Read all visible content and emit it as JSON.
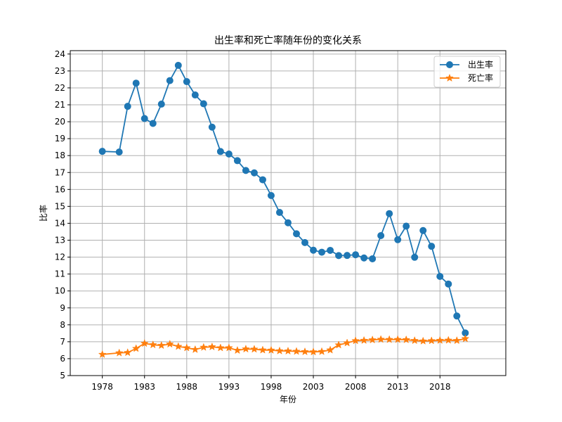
{
  "chart_data": {
    "type": "line",
    "title": "出生率和死亡率随年份的变化关系",
    "xlabel": "年份",
    "ylabel": "比率",
    "xlim": [
      1974.2,
      2025.8
    ],
    "ylim": [
      5,
      24.2
    ],
    "x_ticks": [
      1978,
      1983,
      1988,
      1993,
      1998,
      2003,
      2008,
      2013,
      2018
    ],
    "y_ticks": [
      5,
      6,
      7,
      8,
      9,
      10,
      11,
      12,
      13,
      14,
      15,
      16,
      17,
      18,
      19,
      20,
      21,
      22,
      23,
      24
    ],
    "grid": true,
    "legend_position": "top-right",
    "series": [
      {
        "name": "出生率",
        "color": "#1f77b4",
        "marker": "circle",
        "points": [
          [
            1978,
            18.25
          ],
          [
            1980,
            18.21
          ],
          [
            1981,
            20.91
          ],
          [
            1982,
            22.28
          ],
          [
            1983,
            20.19
          ],
          [
            1984,
            19.9
          ],
          [
            1985,
            21.04
          ],
          [
            1986,
            22.43
          ],
          [
            1987,
            23.33
          ],
          [
            1988,
            22.37
          ],
          [
            1989,
            21.58
          ],
          [
            1990,
            21.06
          ],
          [
            1991,
            19.68
          ],
          [
            1992,
            18.24
          ],
          [
            1993,
            18.09
          ],
          [
            1994,
            17.7
          ],
          [
            1995,
            17.12
          ],
          [
            1996,
            16.98
          ],
          [
            1997,
            16.57
          ],
          [
            1998,
            15.64
          ],
          [
            1999,
            14.64
          ],
          [
            2000,
            14.03
          ],
          [
            2001,
            13.38
          ],
          [
            2002,
            12.86
          ],
          [
            2003,
            12.41
          ],
          [
            2004,
            12.29
          ],
          [
            2005,
            12.4
          ],
          [
            2006,
            12.09
          ],
          [
            2007,
            12.1
          ],
          [
            2008,
            12.14
          ],
          [
            2009,
            11.95
          ],
          [
            2010,
            11.9
          ],
          [
            2011,
            13.27
          ],
          [
            2012,
            14.57
          ],
          [
            2013,
            13.03
          ],
          [
            2014,
            13.83
          ],
          [
            2015,
            11.99
          ],
          [
            2016,
            13.57
          ],
          [
            2017,
            12.64
          ],
          [
            2018,
            10.86
          ],
          [
            2019,
            10.41
          ],
          [
            2020,
            8.52
          ],
          [
            2021,
            7.52
          ]
        ]
      },
      {
        "name": "死亡率",
        "color": "#ff7f0e",
        "marker": "star",
        "points": [
          [
            1978,
            6.25
          ],
          [
            1980,
            6.34
          ],
          [
            1981,
            6.36
          ],
          [
            1982,
            6.6
          ],
          [
            1983,
            6.9
          ],
          [
            1984,
            6.82
          ],
          [
            1985,
            6.78
          ],
          [
            1986,
            6.86
          ],
          [
            1987,
            6.72
          ],
          [
            1988,
            6.64
          ],
          [
            1989,
            6.54
          ],
          [
            1990,
            6.67
          ],
          [
            1991,
            6.7
          ],
          [
            1992,
            6.64
          ],
          [
            1993,
            6.64
          ],
          [
            1994,
            6.49
          ],
          [
            1995,
            6.57
          ],
          [
            1996,
            6.56
          ],
          [
            1997,
            6.51
          ],
          [
            1998,
            6.5
          ],
          [
            1999,
            6.46
          ],
          [
            2000,
            6.45
          ],
          [
            2001,
            6.43
          ],
          [
            2002,
            6.41
          ],
          [
            2003,
            6.4
          ],
          [
            2004,
            6.42
          ],
          [
            2005,
            6.51
          ],
          [
            2006,
            6.81
          ],
          [
            2007,
            6.93
          ],
          [
            2008,
            7.06
          ],
          [
            2009,
            7.08
          ],
          [
            2010,
            7.11
          ],
          [
            2011,
            7.14
          ],
          [
            2012,
            7.13
          ],
          [
            2013,
            7.13
          ],
          [
            2014,
            7.12
          ],
          [
            2015,
            7.07
          ],
          [
            2016,
            7.04
          ],
          [
            2017,
            7.06
          ],
          [
            2018,
            7.08
          ],
          [
            2019,
            7.09
          ],
          [
            2020,
            7.07
          ],
          [
            2021,
            7.18
          ]
        ]
      }
    ]
  }
}
